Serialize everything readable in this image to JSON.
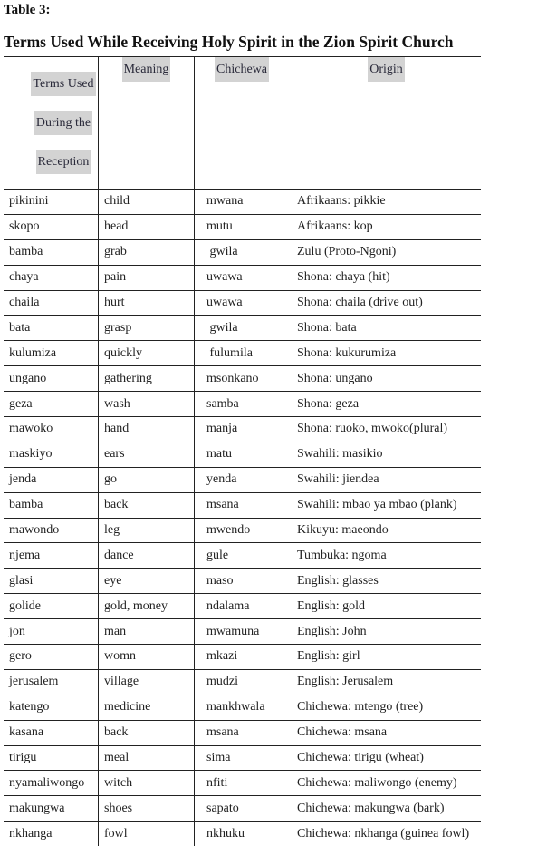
{
  "label": "Table 3:",
  "title": "Terms Used While Receiving Holy Spirit in the Zion Spirit Church",
  "headers": {
    "term_lines": [
      "Terms Used",
      "During the",
      "Reception"
    ],
    "meaning": "Meaning",
    "chichewa": "Chichewa",
    "origin": "Origin"
  },
  "rows": [
    [
      "pikinini",
      "child",
      "mwana",
      "Afrikaans: pikkie"
    ],
    [
      "skopo",
      "head",
      "mutu",
      "Afrikaans: kop"
    ],
    [
      "bamba",
      "grab",
      " gwila",
      "Zulu (Proto-Ngoni)"
    ],
    [
      "chaya",
      "pain",
      "uwawa",
      "Shona: chaya (hit)"
    ],
    [
      "chaila",
      "hurt",
      "uwawa",
      "Shona: chaila (drive out)"
    ],
    [
      "bata",
      "grasp",
      " gwila",
      "Shona: bata"
    ],
    [
      "kulumiza",
      "quickly",
      " fulumila",
      "Shona: kukurumiza"
    ],
    [
      "ungano",
      "gathering",
      "msonkano",
      "Shona: ungano"
    ],
    [
      "geza",
      "wash",
      "samba",
      "Shona: geza"
    ],
    [
      "mawoko",
      "hand",
      "manja",
      "Shona: ruoko, mwoko(plural)"
    ],
    [
      "maskiyo",
      "ears",
      "matu",
      "Swahili: masikio"
    ],
    [
      "jenda",
      "go",
      "yenda",
      "Swahili: jiendea"
    ],
    [
      "bamba",
      "back",
      "msana",
      "Swahili: mbao ya mbao (plank)"
    ],
    [
      "mawondo",
      "leg",
      "mwendo",
      "Kikuyu: maeondo"
    ],
    [
      "njema",
      "dance",
      "gule",
      "Tumbuka: ngoma"
    ],
    [
      "glasi",
      "eye",
      "maso",
      "English: glasses"
    ],
    [
      "golide",
      "gold, money",
      "ndalama",
      "English: gold"
    ],
    [
      "jon",
      "man",
      "mwamuna",
      "English: John"
    ],
    [
      "gero",
      "womn",
      "mkazi",
      "English: girl"
    ],
    [
      "jerusalem",
      "village",
      "mudzi",
      "English: Jerusalem"
    ],
    [
      "katengo",
      "medicine",
      "mankhwala",
      "Chichewa: mtengo (tree)"
    ],
    [
      "kasana",
      "back",
      "msana",
      "Chichewa: msana"
    ],
    [
      "tirigu",
      "meal",
      "sima",
      "Chichewa: tirigu (wheat)"
    ],
    [
      "nyamaliwongo",
      "witch",
      "nfiti",
      "Chichewa: maliwongo (enemy)"
    ],
    [
      "makungwa",
      "shoes",
      "sapato",
      "Chichewa: makungwa (bark)"
    ],
    [
      "nkhanga",
      "fowl",
      "nkhuku",
      "Chichewa: nkhanga (guinea fowl)"
    ]
  ]
}
